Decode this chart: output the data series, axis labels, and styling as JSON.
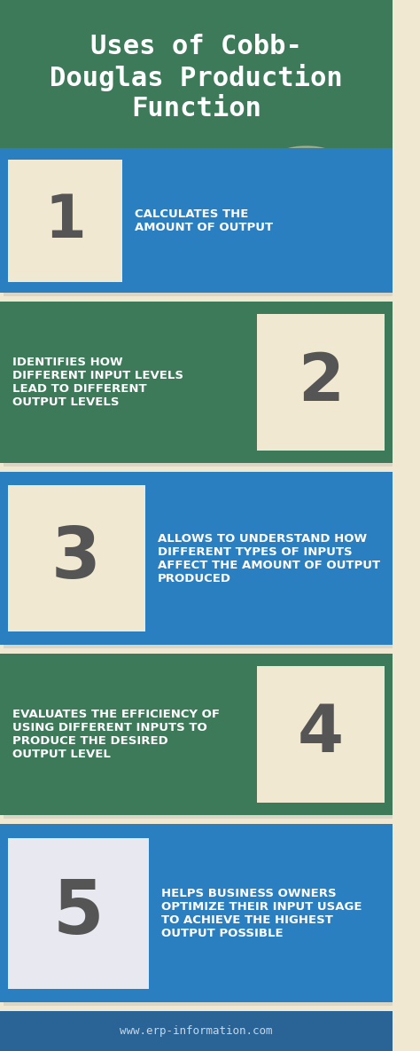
{
  "title": "Uses of Cobb-\nDouglas Production\nFunction",
  "title_bg": "#3d7a5a",
  "title_color": "#ffffff",
  "title_fontsize": 22,
  "bg_color": "#f0e8d0",
  "footer_bg": "#2a6496",
  "footer_text": "www.erp-information.com",
  "footer_color": "#c8d8e8",
  "sections": [
    {
      "text": "CALCULATES THE\nAMOUNT OF OUTPUT",
      "text_color": "#ffffff",
      "band_color": "#2a7fc1",
      "icon_side": "left",
      "icon_bg": "#f0e8d0"
    },
    {
      "text": "IDENTIFIES HOW\nDIFFERENT INPUT LEVELS\nLEAD TO DIFFERENT\nOUTPUT LEVELS",
      "text_color": "#ffffff",
      "band_color": "#3d7a5a",
      "icon_side": "right",
      "icon_bg": "#f0e8d0"
    },
    {
      "text": "ALLOWS TO UNDERSTAND HOW\nDIFFERENT TYPES OF INPUTS\nAFFECT THE AMOUNT OF OUTPUT\nPRODUCED",
      "text_color": "#ffffff",
      "band_color": "#2a7fc1",
      "icon_side": "left",
      "icon_bg": "#f0e8d0"
    },
    {
      "text": "EVALUATES THE EFFICIENCY OF\nUSING DIFFERENT INPUTS TO\nPRODUCE THE DESIRED\nOUTPUT LEVEL",
      "text_color": "#ffffff",
      "band_color": "#3d7a5a",
      "icon_side": "right",
      "icon_bg": "#f0e8d0"
    },
    {
      "text": "HELPS BUSINESS OWNERS\nOPTIMIZE THEIR INPUT USAGE\nTO ACHIEVE THE HIGHEST\nOUTPUT POSSIBLE",
      "text_color": "#ffffff",
      "band_color": "#2a7fc1",
      "icon_side": "left",
      "icon_bg": "#e8e8f0"
    }
  ]
}
